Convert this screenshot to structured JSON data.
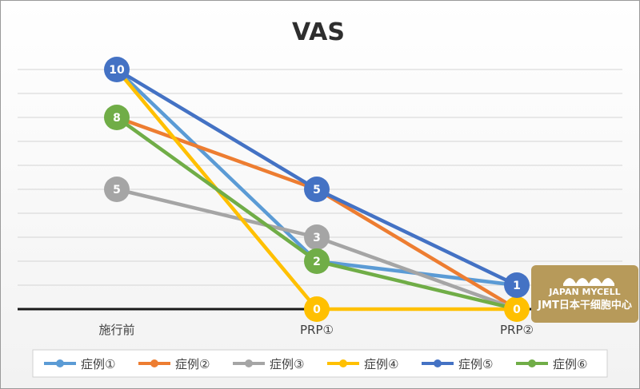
{
  "chart_data": {
    "type": "line",
    "title": "VAS",
    "xlabel": "",
    "ylabel": "",
    "categories": [
      "施行前",
      "PRP①",
      "PRP②"
    ],
    "ylim": [
      0,
      10
    ],
    "grid": true,
    "legend_position": "bottom",
    "series": [
      {
        "name": "症例①",
        "values": [
          10,
          2,
          1
        ],
        "color": "#5b9bd5",
        "labels": [
          false,
          false,
          false
        ]
      },
      {
        "name": "症例②",
        "values": [
          8,
          5,
          0
        ],
        "color": "#ed7d31",
        "labels": [
          false,
          false,
          false
        ]
      },
      {
        "name": "症例③",
        "values": [
          5,
          3,
          0
        ],
        "color": "#a5a5a5",
        "labels": [
          true,
          true,
          false
        ]
      },
      {
        "name": "症例④",
        "values": [
          10,
          0,
          0
        ],
        "color": "#ffc000",
        "labels": [
          false,
          true,
          true
        ]
      },
      {
        "name": "症例⑤",
        "values": [
          10,
          5,
          1
        ],
        "color": "#4472c4",
        "labels": [
          true,
          true,
          true
        ]
      },
      {
        "name": "症例⑥",
        "values": [
          8,
          2,
          0
        ],
        "color": "#70ad47",
        "labels": [
          true,
          true,
          false
        ]
      }
    ]
  },
  "watermark": {
    "line1": "JAPAN MYCELL",
    "line2": "JMT日本干细胞中心",
    "background": "#b79a5a"
  }
}
